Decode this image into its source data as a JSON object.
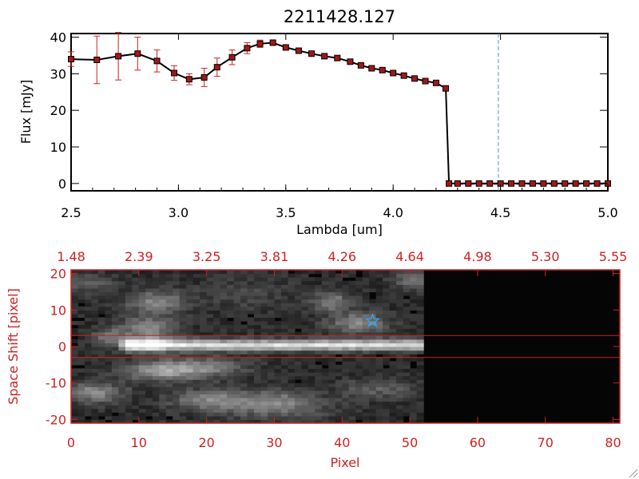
{
  "chart_data": [
    {
      "type": "line",
      "title": "2211428.127",
      "xlabel": "Lambda [um]",
      "ylabel": "Flux [mJy]",
      "xlim": [
        2.5,
        5.0
      ],
      "ylim": [
        -2,
        41
      ],
      "x_ticks": [
        "2.5",
        "3.0",
        "3.5",
        "4.0",
        "4.5",
        "5.0"
      ],
      "x_tick_values": [
        2.5,
        3.0,
        3.5,
        4.0,
        4.5,
        5.0
      ],
      "y_ticks": [
        "0",
        "10",
        "20",
        "30",
        "40"
      ],
      "y_tick_values": [
        0,
        10,
        20,
        30,
        40
      ],
      "reference_line_x": 4.49,
      "reference_line_style": "dashed",
      "series": [
        {
          "marker": "square",
          "line_color": "#000000",
          "marker_color": "#a01818",
          "errorbar_color": "#cc2222",
          "x": [
            2.5,
            2.62,
            2.72,
            2.81,
            2.9,
            2.98,
            3.05,
            3.12,
            3.18,
            3.25,
            3.32,
            3.38,
            3.44,
            3.5,
            3.56,
            3.62,
            3.68,
            3.74,
            3.8,
            3.85,
            3.9,
            3.95,
            4.0,
            4.05,
            4.1,
            4.15,
            4.2,
            4.245,
            4.26,
            4.3,
            4.35,
            4.4,
            4.45,
            4.5,
            4.55,
            4.6,
            4.65,
            4.7,
            4.75,
            4.8,
            4.85,
            4.9,
            4.95,
            5.0
          ],
          "y": [
            34.0,
            33.8,
            34.8,
            35.5,
            33.5,
            30.2,
            28.5,
            29.0,
            31.8,
            34.5,
            37.0,
            38.2,
            38.5,
            37.2,
            36.3,
            35.5,
            34.8,
            34.3,
            33.3,
            32.3,
            31.5,
            31.0,
            30.2,
            29.5,
            28.7,
            28.0,
            27.5,
            26.0,
            0,
            0,
            0,
            0,
            0,
            0,
            0,
            0,
            0,
            0,
            0,
            0,
            0,
            0,
            0,
            0
          ],
          "yerr": [
            2.0,
            6.5,
            6.5,
            4.5,
            3.0,
            2.0,
            1.5,
            2.5,
            2.5,
            2.0,
            1.5,
            1.0,
            0.5,
            0.5,
            0.5,
            0.5,
            0.5,
            0.5,
            0.5,
            0.5,
            0.5,
            0.5,
            0.5,
            0.5,
            0.5,
            0.5,
            0.5,
            0.5,
            0,
            0,
            0,
            0,
            0,
            0,
            0,
            0,
            0,
            0,
            0,
            0,
            0,
            0,
            0,
            0
          ]
        }
      ]
    },
    {
      "type": "heatmap",
      "xlabel": "Pixel",
      "ylabel": "Space Shift [pixel]",
      "xlim": [
        0,
        81
      ],
      "ylim": [
        -21,
        21
      ],
      "x_ticks": [
        "0",
        "10",
        "20",
        "30",
        "40",
        "50",
        "60",
        "70",
        "80"
      ],
      "x_tick_values": [
        0,
        10,
        20,
        30,
        40,
        50,
        60,
        70,
        80
      ],
      "y_ticks": [
        "-20",
        "-10",
        "0",
        "10",
        "20"
      ],
      "y_tick_values": [
        -20,
        -10,
        0,
        10,
        20
      ],
      "top_axis_ticks": [
        "1.48",
        "2.39",
        "3.25",
        "3.81",
        "4.26",
        "4.64",
        "4.98",
        "5.30",
        "5.55"
      ],
      "top_axis_tick_values": [
        0,
        10,
        20,
        30,
        40,
        50,
        60,
        70,
        80
      ],
      "extraction_window": [
        -3,
        3
      ],
      "star_marker": {
        "x": 44.5,
        "y": 7
      },
      "data_extent_pixel": 52,
      "colormap": "grayscale",
      "axis_color": "#cc2222",
      "marker_color": "#3aa0e8"
    }
  ]
}
